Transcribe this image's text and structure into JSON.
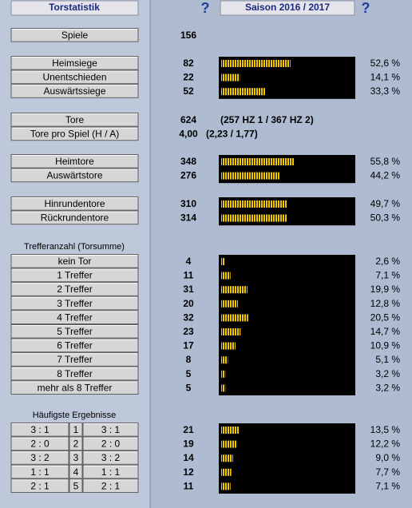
{
  "header": {
    "title": "Torstatistik",
    "help_left": "?",
    "season": "Saison 2016 / 2017",
    "help_right": "?"
  },
  "groups": [
    {
      "rows": [
        {
          "label": "Spiele",
          "value": 156
        }
      ]
    },
    {
      "rows": [
        {
          "label": "Heimsiege",
          "value": 82,
          "percent": 52.6,
          "percent_label": "52,6 %"
        },
        {
          "label": "Unentschieden",
          "value": 22,
          "percent": 14.1,
          "percent_label": "14,1 %"
        },
        {
          "label": "Auswärtssiege",
          "value": 52,
          "percent": 33.3,
          "percent_label": "33,3 %"
        }
      ]
    },
    {
      "rows": [
        {
          "label": "Tore",
          "value": 624,
          "note": "(257 HZ 1 / 367 HZ 2)"
        },
        {
          "label": "Tore pro Spiel (H / A)",
          "value": "4,00",
          "note": "(2,23 / 1,77)"
        }
      ]
    },
    {
      "rows": [
        {
          "label": "Heimtore",
          "value": 348,
          "percent": 55.8,
          "percent_label": "55,8 %"
        },
        {
          "label": "Auswärtstore",
          "value": 276,
          "percent": 44.2,
          "percent_label": "44,2 %"
        }
      ]
    },
    {
      "rows": [
        {
          "label": "Hinrundentore",
          "value": 310,
          "percent": 49.7,
          "percent_label": "49,7 %"
        },
        {
          "label": "Rückrundentore",
          "value": 314,
          "percent": 50.3,
          "percent_label": "50,3 %"
        }
      ]
    },
    {
      "heading": "Trefferanzahl (Torsumme)",
      "rows": [
        {
          "label": "kein Tor",
          "value": 4,
          "percent": 2.6,
          "percent_label": "2,6 %"
        },
        {
          "label": "1 Treffer",
          "value": 11,
          "percent": 7.1,
          "percent_label": "7,1 %"
        },
        {
          "label": "2 Treffer",
          "value": 31,
          "percent": 19.9,
          "percent_label": "19,9 %"
        },
        {
          "label": "3 Treffer",
          "value": 20,
          "percent": 12.8,
          "percent_label": "12,8 %"
        },
        {
          "label": "4 Treffer",
          "value": 32,
          "percent": 20.5,
          "percent_label": "20,5 %"
        },
        {
          "label": "5 Treffer",
          "value": 23,
          "percent": 14.7,
          "percent_label": "14,7 %"
        },
        {
          "label": "6 Treffer",
          "value": 17,
          "percent": 10.9,
          "percent_label": "10,9 %"
        },
        {
          "label": "7 Treffer",
          "value": 8,
          "percent": 5.1,
          "percent_label": "5,1 %"
        },
        {
          "label": "8 Treffer",
          "value": 5,
          "percent": 3.2,
          "percent_label": "3,2 %"
        },
        {
          "label": "mehr als 8 Treffer",
          "value": 5,
          "percent": 3.2,
          "percent_label": "3,2 %"
        }
      ]
    },
    {
      "heading": "Häufigste Ergebnisse",
      "rows": [
        {
          "left": "3 : 1",
          "rank": 1,
          "right": "3 : 1",
          "value": 21,
          "percent": 13.5,
          "percent_label": "13,5 %"
        },
        {
          "left": "2 : 0",
          "rank": 2,
          "right": "2 : 0",
          "value": 19,
          "percent": 12.2,
          "percent_label": "12,2 %"
        },
        {
          "left": "3 : 2",
          "rank": 3,
          "right": "3 : 2",
          "value": 14,
          "percent": 9.0,
          "percent_label": "9,0 %"
        },
        {
          "left": "1 : 1",
          "rank": 4,
          "right": "1 : 1",
          "value": 12,
          "percent": 7.7,
          "percent_label": "7,7 %"
        },
        {
          "left": "2 : 1",
          "rank": 5,
          "right": "2 : 1",
          "value": 11,
          "percent": 7.1,
          "percent_label": "7,1 %"
        }
      ]
    }
  ]
}
